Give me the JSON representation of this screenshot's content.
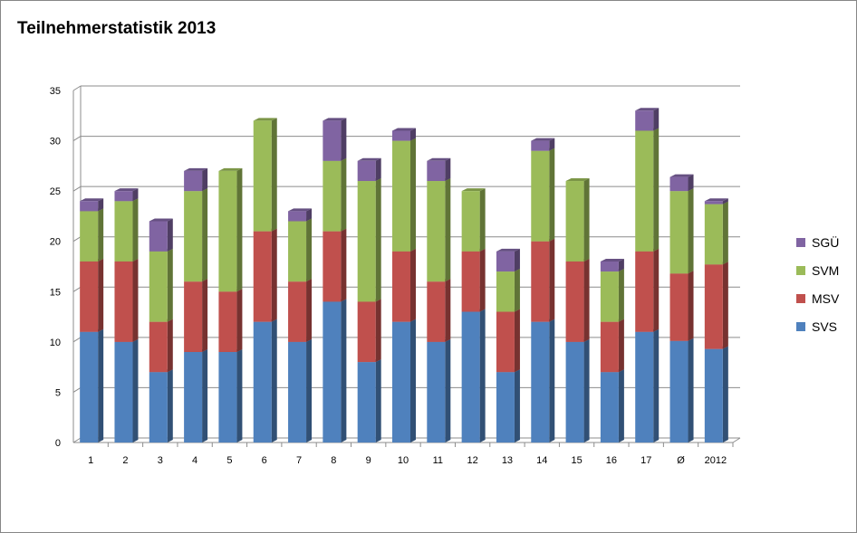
{
  "chart_data": {
    "type": "bar",
    "stacked": true,
    "title": "Teilnehmerstatistik 2013",
    "xlabel": "",
    "ylabel": "",
    "ylim": [
      0,
      35
    ],
    "yticks": [
      0,
      5,
      10,
      15,
      20,
      25,
      30,
      35
    ],
    "grid": true,
    "legend": "right",
    "categories": [
      "1",
      "2",
      "3",
      "4",
      "5",
      "6",
      "7",
      "8",
      "9",
      "10",
      "11",
      "12",
      "13",
      "14",
      "15",
      "16",
      "17",
      "Ø",
      "2012"
    ],
    "series": [
      {
        "name": "SVS",
        "color": "#4F81BD",
        "values": [
          11,
          10,
          7,
          9,
          9,
          12,
          10,
          14,
          8,
          12,
          10,
          13,
          7,
          12,
          10,
          7,
          11,
          10.1,
          9.3
        ]
      },
      {
        "name": "MSV",
        "color": "#C0504D",
        "values": [
          7,
          8,
          5,
          7,
          6,
          9,
          6,
          7,
          6,
          7,
          6,
          6,
          6,
          8,
          8,
          5,
          8,
          6.7,
          8.4
        ]
      },
      {
        "name": "SVM",
        "color": "#9BBB59",
        "values": [
          5,
          6,
          7,
          9,
          12,
          11,
          6,
          7,
          12,
          11,
          10,
          6,
          4,
          9,
          8,
          5,
          12,
          8.2,
          6
        ]
      },
      {
        "name": "SGÜ",
        "color": "#8064A2",
        "values": [
          1,
          1,
          3,
          2,
          0,
          0,
          1,
          4,
          2,
          1,
          2,
          0,
          2,
          1,
          0,
          1,
          2,
          1.4,
          0.3
        ]
      }
    ]
  }
}
